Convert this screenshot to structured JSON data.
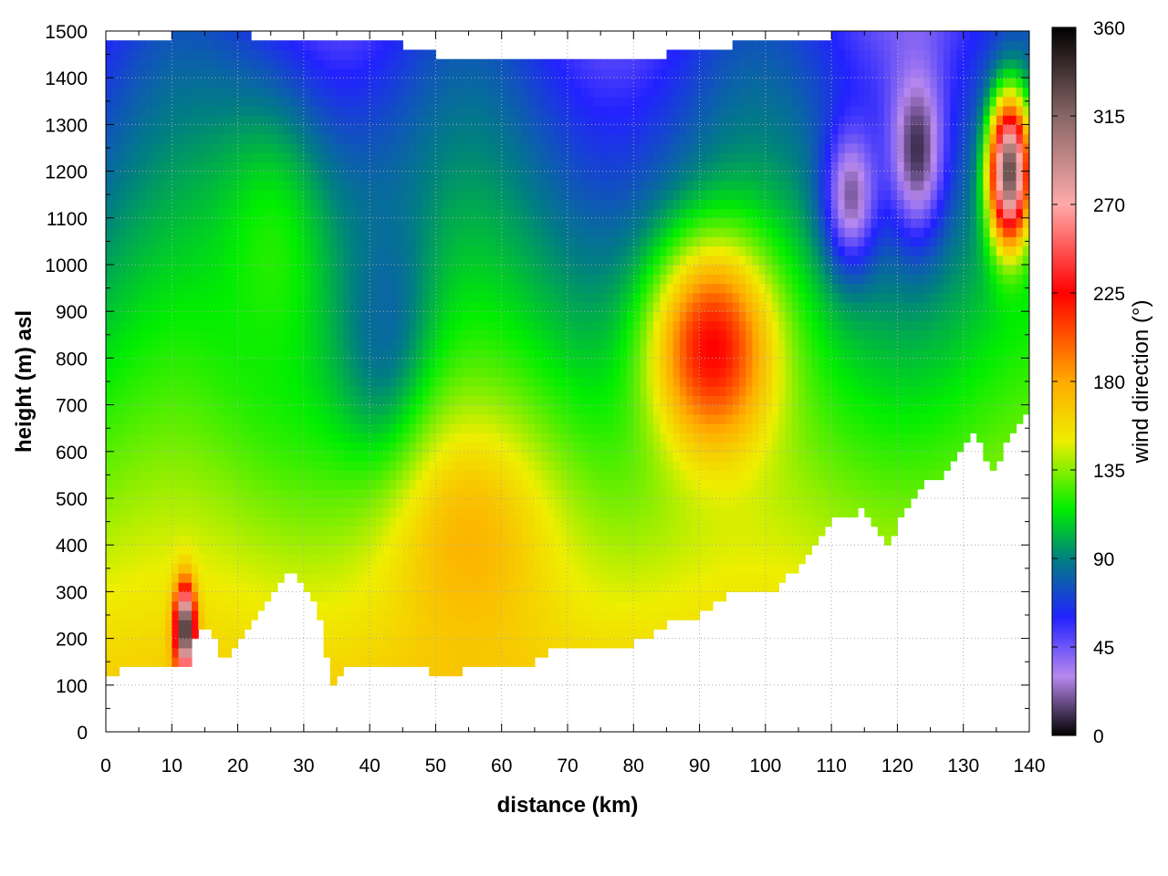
{
  "chart_data": {
    "type": "heatmap",
    "title": "",
    "xlabel": "distance (km)",
    "ylabel": "height (m) asl",
    "colorbar_label": "wind direction (°)",
    "xlim": [
      0,
      140
    ],
    "ylim": [
      0,
      1500
    ],
    "xticks": [
      "0",
      "10",
      "20",
      "30",
      "40",
      "50",
      "60",
      "70",
      "80",
      "90",
      "100",
      "110",
      "120",
      "130",
      "140"
    ],
    "yticks": [
      "0",
      "100",
      "200",
      "300",
      "400",
      "500",
      "600",
      "700",
      "800",
      "900",
      "1000",
      "1100",
      "1200",
      "1300",
      "1400",
      "1500"
    ],
    "colorbar_range": [
      0,
      360
    ],
    "colorbar_ticks": [
      "0",
      "45",
      "90",
      "135",
      "180",
      "225",
      "270",
      "315",
      "360"
    ],
    "grid": true,
    "colormap": [
      {
        "value": 0,
        "color": "#000000"
      },
      {
        "value": 30,
        "color": "#b888ee"
      },
      {
        "value": 60,
        "color": "#2222ff"
      },
      {
        "value": 90,
        "color": "#008080"
      },
      {
        "value": 115,
        "color": "#00ee00"
      },
      {
        "value": 150,
        "color": "#eeee00"
      },
      {
        "value": 180,
        "color": "#ffaa00"
      },
      {
        "value": 225,
        "color": "#ff0000"
      },
      {
        "value": 270,
        "color": "#ffaaaa"
      },
      {
        "value": 315,
        "color": "#886666"
      },
      {
        "value": 360,
        "color": "#000000"
      }
    ],
    "terrain_profile": {
      "x": [
        0,
        2,
        5,
        8,
        10,
        12,
        14,
        16,
        18,
        20,
        22,
        25,
        28,
        30,
        32,
        34,
        35,
        36,
        38,
        40,
        42,
        45,
        48,
        50,
        52,
        55,
        58,
        60,
        62,
        65,
        67,
        70,
        75,
        80,
        85,
        90,
        95,
        100,
        103,
        105,
        108,
        110,
        113,
        115,
        118,
        119,
        121,
        123,
        125,
        127,
        129,
        131,
        133,
        134,
        136,
        138,
        140
      ],
      "height": [
        125,
        130,
        150,
        145,
        150,
        125,
        220,
        230,
        140,
        190,
        220,
        300,
        340,
        320,
        270,
        120,
        85,
        150,
        130,
        140,
        145,
        130,
        150,
        120,
        115,
        135,
        135,
        135,
        140,
        150,
        170,
        175,
        170,
        190,
        230,
        250,
        300,
        290,
        330,
        350,
        400,
        450,
        460,
        480,
        420,
        400,
        470,
        510,
        545,
        550,
        600,
        640,
        620,
        550,
        600,
        650,
        700
      ]
    },
    "top_boundary": {
      "x": [
        0,
        10,
        20,
        30,
        40,
        50,
        60,
        70,
        80,
        90,
        100,
        110,
        120,
        130,
        140
      ],
      "height": [
        1480,
        1490,
        1495,
        1470,
        1490,
        1450,
        1440,
        1430,
        1440,
        1460,
        1480,
        1490,
        1500,
        1500,
        1500
      ]
    },
    "features": [
      {
        "x": 92,
        "height": 820,
        "direction": 225,
        "radius_km": 9,
        "radius_m": 220
      },
      {
        "x": 55,
        "height": 400,
        "direction": 175,
        "radius_km": 12,
        "radius_m": 260
      },
      {
        "x": 42,
        "height": 900,
        "direction": 80,
        "radius_km": 7,
        "radius_m": 300
      },
      {
        "x": 25,
        "height": 1000,
        "direction": 120,
        "radius_km": 10,
        "radius_m": 350
      },
      {
        "x": 113,
        "height": 1150,
        "direction": 20,
        "radius_km": 4,
        "radius_m": 150
      },
      {
        "x": 123,
        "height": 1250,
        "direction": 10,
        "radius_km": 4,
        "radius_m": 180
      },
      {
        "x": 137,
        "height": 1200,
        "direction": 330,
        "radius_km": 3,
        "radius_m": 150
      },
      {
        "x": 12,
        "height": 220,
        "direction": 350,
        "radius_km": 1.5,
        "radius_m": 90
      }
    ]
  }
}
